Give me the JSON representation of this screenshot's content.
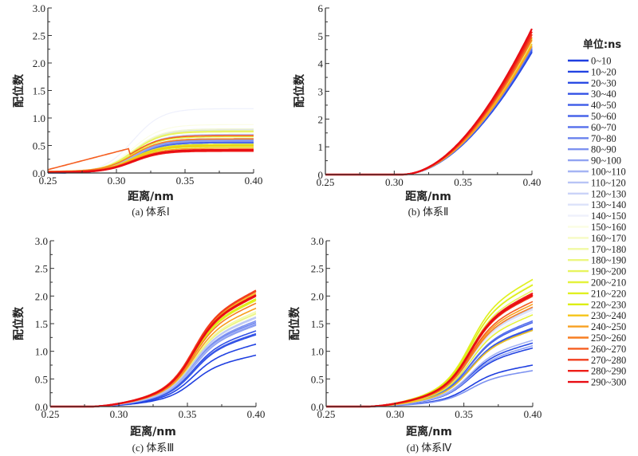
{
  "legend": {
    "title": "单位:ns",
    "entries": [
      {
        "label": "0~10",
        "color": "#1f3fe0"
      },
      {
        "label": "10~20",
        "color": "#2243e2"
      },
      {
        "label": "20~30",
        "color": "#2a4be4"
      },
      {
        "label": "30~40",
        "color": "#3352e6"
      },
      {
        "label": "40~50",
        "color": "#3c5ae8"
      },
      {
        "label": "50~60",
        "color": "#4864ea"
      },
      {
        "label": "60~70",
        "color": "#556fec"
      },
      {
        "label": "70~80",
        "color": "#6a82ee"
      },
      {
        "label": "80~90",
        "color": "#7d92f0"
      },
      {
        "label": "90~100",
        "color": "#91a3f2"
      },
      {
        "label": "100~110",
        "color": "#a5b4f4"
      },
      {
        "label": "110~120",
        "color": "#b8c4f6"
      },
      {
        "label": "120~130",
        "color": "#cad3f8"
      },
      {
        "label": "130~140",
        "color": "#dce2fa"
      },
      {
        "label": "140~150",
        "color": "#eef0fc"
      },
      {
        "label": "150~160",
        "color": "#fbfde4"
      },
      {
        "label": "160~170",
        "color": "#f6fbc4"
      },
      {
        "label": "170~180",
        "color": "#f1f9a3"
      },
      {
        "label": "180~190",
        "color": "#ecf67f"
      },
      {
        "label": "190~200",
        "color": "#e8f45e"
      },
      {
        "label": "200~210",
        "color": "#e4f23c"
      },
      {
        "label": "210~220",
        "color": "#e0f020"
      },
      {
        "label": "220~230",
        "color": "#dcee10"
      },
      {
        "label": "230~240",
        "color": "#f5c518"
      },
      {
        "label": "240~250",
        "color": "#f8a020"
      },
      {
        "label": "250~260",
        "color": "#f77f22"
      },
      {
        "label": "260~270",
        "color": "#f55e20"
      },
      {
        "label": "270~280",
        "color": "#f23d1c"
      },
      {
        "label": "280~290",
        "color": "#ee1e18"
      },
      {
        "label": "290~300",
        "color": "#e80c14"
      }
    ]
  },
  "chart_data": [
    {
      "id": "a",
      "type": "line",
      "caption": "(a) 体系Ⅰ",
      "xlabel": "距离/nm",
      "ylabel": "配位数",
      "xlim": [
        0.25,
        0.4
      ],
      "ylim": [
        0,
        3.0
      ],
      "xticks": [
        "0.25",
        "0.30",
        "0.35",
        "0.40"
      ],
      "yticks": [
        "0.0",
        "0.5",
        "1.0",
        "1.5",
        "2.0",
        "2.5",
        "3.0"
      ],
      "x": [
        0.25,
        0.3,
        0.35,
        0.4
      ],
      "series_shape": "sigmoid",
      "midpoint_x": 0.312,
      "final_values": [
        0.6,
        0.56,
        0.55,
        0.52,
        0.58,
        0.62,
        0.55,
        0.5,
        0.6,
        0.58,
        0.62,
        0.7,
        0.78,
        0.8,
        1.17,
        0.88,
        0.8,
        0.77,
        0.76,
        0.75,
        0.66,
        0.52,
        0.48,
        0.5,
        0.45,
        0.62,
        0.68,
        0.42,
        0.4,
        0.42
      ],
      "start_values": [
        0.0,
        0.0,
        0.0,
        0.0,
        0.0,
        0.0,
        0.0,
        0.0,
        0.0,
        0.0,
        0.0,
        0.0,
        0.0,
        0.01,
        0.01,
        0.02,
        0.02,
        0.02,
        0.02,
        0.02,
        0.03,
        0.02,
        0.02,
        0.02,
        0.02,
        0.03,
        0.06,
        0.02,
        0.01,
        0.01
      ]
    },
    {
      "id": "b",
      "type": "line",
      "caption": "(b) 体系Ⅱ",
      "xlabel": "距离/nm",
      "ylabel": "配位数",
      "xlim": [
        0.25,
        0.4
      ],
      "ylim": [
        0,
        6
      ],
      "xticks": [
        "0.25",
        "0.30",
        "0.35",
        "0.40"
      ],
      "yticks": [
        "0",
        "1",
        "2",
        "3",
        "4",
        "5",
        "6"
      ],
      "series_shape": "rise",
      "onset_x": 0.305,
      "final_values": [
        4.4,
        4.42,
        4.45,
        4.48,
        4.5,
        4.52,
        4.55,
        4.58,
        4.6,
        4.62,
        4.65,
        4.68,
        4.7,
        4.72,
        4.74,
        4.75,
        4.78,
        4.8,
        4.82,
        4.85,
        4.88,
        4.9,
        4.95,
        4.7,
        4.62,
        4.85,
        4.95,
        5.05,
        5.15,
        5.25
      ]
    },
    {
      "id": "c",
      "type": "line",
      "caption": "(c) 体系Ⅲ",
      "xlabel": "距离/nm",
      "ylabel": "配位数",
      "xlim": [
        0.25,
        0.4
      ],
      "ylim": [
        0,
        3.0
      ],
      "xticks": [
        "0.25",
        "0.30",
        "0.35",
        "0.40"
      ],
      "yticks": [
        "0.0",
        "0.5",
        "1.0",
        "1.5",
        "2.0",
        "2.5",
        "3.0"
      ],
      "series_shape": "sigmoid-late",
      "onset_x": 0.28,
      "final_values": [
        0.93,
        1.13,
        1.3,
        1.37,
        1.32,
        1.5,
        1.48,
        1.52,
        1.55,
        1.47,
        1.5,
        1.62,
        1.6,
        1.55,
        1.5,
        1.65,
        1.7,
        1.72,
        1.68,
        1.93,
        1.95,
        1.92,
        1.95,
        2.05,
        1.78,
        1.87,
        2.08,
        2.1,
        2.0,
        2.02
      ]
    },
    {
      "id": "d",
      "type": "line",
      "caption": "(d) 体系Ⅳ",
      "xlabel": "距离/nm",
      "ylabel": "配位数",
      "xlim": [
        0.25,
        0.4
      ],
      "ylim": [
        0,
        3.0
      ],
      "xticks": [
        "0.25",
        "0.30",
        "0.35",
        "0.40"
      ],
      "yticks": [
        "0.0",
        "0.5",
        "1.0",
        "1.5",
        "2.0",
        "2.5",
        "3.0"
      ],
      "series_shape": "sigmoid-late",
      "onset_x": 0.28,
      "final_values": [
        0.75,
        1.06,
        1.15,
        1.4,
        1.42,
        1.52,
        1.55,
        1.38,
        0.65,
        1.1,
        1.2,
        1.8,
        1.78,
        1.75,
        1.7,
        2.05,
        2.22,
        2.2,
        2.3,
        2.1,
        1.66,
        2.3,
        2.2,
        1.38,
        1.85,
        1.8,
        1.9,
        2.0,
        2.05,
        2.02
      ]
    }
  ]
}
